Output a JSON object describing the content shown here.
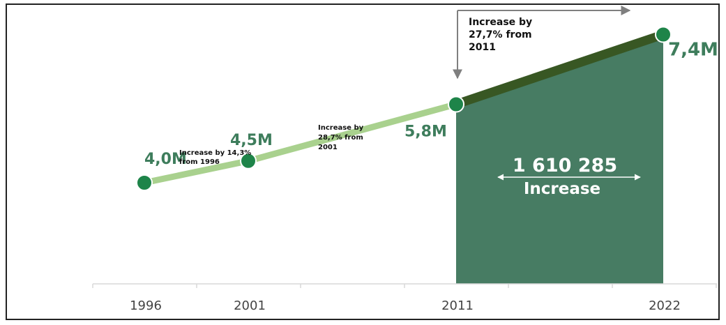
{
  "chart_data": {
    "type": "line",
    "title": "",
    "xlabel": "",
    "ylabel": "",
    "x": [
      1996,
      2001,
      2011,
      2022
    ],
    "tick_labels": [
      "1996",
      "2001",
      "2011",
      "2022"
    ],
    "values": [
      4.0,
      4.5,
      5.8,
      7.4
    ],
    "value_labels": [
      "4,0M",
      "4,5M",
      "5,8M",
      "7,4M"
    ],
    "ylim": [
      0,
      8
    ],
    "grid": false,
    "highlight_area": {
      "from": 2011,
      "to": 2022,
      "value": "1 610 285",
      "label": "Increase"
    },
    "annotations": [
      {
        "lines": [
          "Increase by 14,3%",
          "from 1996"
        ]
      },
      {
        "lines": [
          "Increase by",
          "28,7% from",
          "2001"
        ]
      },
      {
        "lines": [
          "Increase by",
          "27,7% from",
          "2011"
        ]
      }
    ],
    "colors": {
      "line_early": "#a9d18e",
      "line_late": "#385723",
      "area_fill": "#477c63",
      "marker": "#1e8449",
      "value_label": "#3e7d5c"
    }
  }
}
